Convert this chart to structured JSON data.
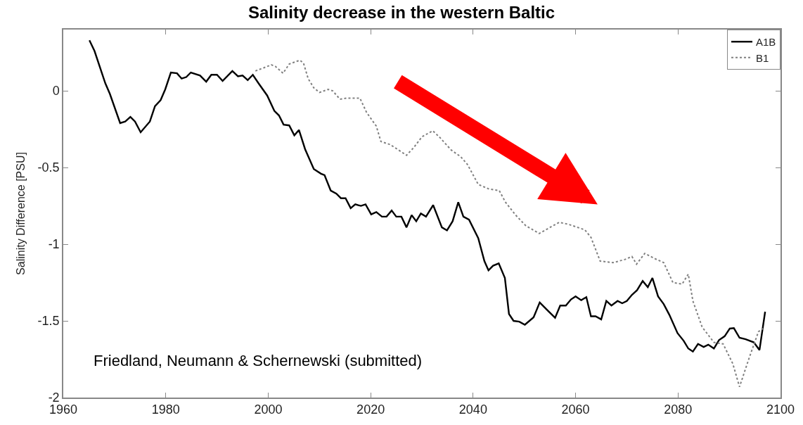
{
  "chart_data": {
    "type": "line",
    "title": "Salinity decrease in the western Baltic",
    "ylabel": "Salinity Difference [PSU]",
    "annotations": [
      "Friedland, Neumann & Schernewski (submitted)"
    ],
    "xlim": [
      1960,
      2100
    ],
    "xticks": [
      1960,
      1980,
      2000,
      2020,
      2040,
      2060,
      2080,
      2100
    ],
    "ylim": [
      -2,
      0.4
    ],
    "yticks": [
      0,
      -0.5,
      -1,
      -1.5,
      -2
    ],
    "grid": false,
    "legend": "top right",
    "marker": "none",
    "series": [
      {
        "name": "A1B",
        "color": "#000000",
        "line_style": "solid",
        "x": [
          1965.1,
          1966.1,
          1968.2,
          1969.1,
          1971.1,
          1972.1,
          1973.1,
          1974.0,
          1975.1,
          1976.9,
          1977.9,
          1979.0,
          1979.9,
          1981.0,
          1982.2,
          1983.1,
          1984.0,
          1984.9,
          1986.7,
          1987.9,
          1988.9,
          1990.0,
          1991.1,
          1993.0,
          1994.1,
          1995.0,
          1996.0,
          1997.0,
          1998.1,
          1999.8,
          2001.2,
          2002.1,
          2003.0,
          2004.1,
          2005.1,
          2006.0,
          2007.2,
          2008.9,
          2010.3,
          2011.0,
          2012.2,
          2013.3,
          2014.2,
          2015.1,
          2016.1,
          2017.0,
          2018.1,
          2019.0,
          2020.1,
          2021.1,
          2022.2,
          2023.1,
          2024.1,
          2025.0,
          2026.0,
          2027.0,
          2028.0,
          2028.9,
          2029.8,
          2030.8,
          2032.2,
          2033.9,
          2034.9,
          2036.0,
          2037.1,
          2038.1,
          2039.2,
          2041.0,
          2042.2,
          2043.0,
          2043.9,
          2045.0,
          2046.2,
          2047.0,
          2047.9,
          2049.0,
          2050.1,
          2051.8,
          2053.0,
          2054.5,
          2056.0,
          2057.0,
          2058.1,
          2059.1,
          2060.0,
          2061.1,
          2062.1,
          2063.0,
          2063.9,
          2065.0,
          2066.0,
          2067.0,
          2068.2,
          2069.1,
          2070.0,
          2071.0,
          2072.0,
          2073.1,
          2074.1,
          2075.0,
          2076.1,
          2077.2,
          2078.3,
          2079.9,
          2081.1,
          2082.0,
          2082.9,
          2083.9,
          2085.0,
          2085.9,
          2087.0,
          2088.0,
          2089.1,
          2090.1,
          2090.9,
          2092.0,
          2093.2,
          2094.8,
          2095.9,
          2097.0
        ],
        "values": [
          0.33,
          0.26,
          0.05,
          -0.02,
          -0.21,
          -0.2,
          -0.17,
          -0.2,
          -0.27,
          -0.2,
          -0.1,
          -0.06,
          0.01,
          0.12,
          0.115,
          0.08,
          0.09,
          0.12,
          0.1,
          0.06,
          0.105,
          0.105,
          0.065,
          0.13,
          0.095,
          0.1,
          0.07,
          0.105,
          0.05,
          -0.03,
          -0.13,
          -0.16,
          -0.22,
          -0.225,
          -0.29,
          -0.255,
          -0.38,
          -0.51,
          -0.54,
          -0.55,
          -0.65,
          -0.67,
          -0.7,
          -0.7,
          -0.765,
          -0.74,
          -0.75,
          -0.74,
          -0.805,
          -0.79,
          -0.82,
          -0.82,
          -0.78,
          -0.82,
          -0.82,
          -0.89,
          -0.81,
          -0.85,
          -0.8,
          -0.82,
          -0.745,
          -0.89,
          -0.91,
          -0.85,
          -0.726,
          -0.82,
          -0.84,
          -0.96,
          -1.11,
          -1.17,
          -1.14,
          -1.125,
          -1.22,
          -1.455,
          -1.5,
          -1.505,
          -1.525,
          -1.477,
          -1.38,
          -1.43,
          -1.48,
          -1.4,
          -1.4,
          -1.36,
          -1.34,
          -1.365,
          -1.345,
          -1.47,
          -1.47,
          -1.49,
          -1.37,
          -1.4,
          -1.37,
          -1.385,
          -1.37,
          -1.33,
          -1.3,
          -1.24,
          -1.28,
          -1.22,
          -1.34,
          -1.39,
          -1.46,
          -1.58,
          -1.63,
          -1.68,
          -1.7,
          -1.65,
          -1.67,
          -1.655,
          -1.68,
          -1.625,
          -1.6,
          -1.55,
          -1.547,
          -1.61,
          -1.62,
          -1.64,
          -1.69,
          -1.44
        ]
      },
      {
        "name": "B1",
        "color": "#808080",
        "line_style": "dotted",
        "x": [
          1997.5,
          1999.1,
          2000.6,
          2001.4,
          2002.9,
          2004.1,
          2006.2,
          2006.9,
          2007.8,
          2008.9,
          2010.0,
          2011.7,
          2012.6,
          2014.0,
          2015.4,
          2017.9,
          2019.2,
          2021.1,
          2022.0,
          2023.8,
          2025.2,
          2027.0,
          2028.4,
          2030.0,
          2032.1,
          2033.4,
          2035.7,
          2037.6,
          2038.9,
          2041.0,
          2043.1,
          2045.1,
          2046.3,
          2048.3,
          2050.3,
          2052.9,
          2054.5,
          2056.8,
          2058.6,
          2061.8,
          2063.0,
          2064.8,
          2067.3,
          2069.6,
          2071.0,
          2071.9,
          2073.5,
          2075.6,
          2077.2,
          2079.0,
          2080.8,
          2082.0,
          2082.9,
          2084.7,
          2087.0,
          2088.8,
          2090.7,
          2092.0,
          2093.9,
          2095.7,
          2096.6
        ],
        "values": [
          0.13,
          0.15,
          0.17,
          0.16,
          0.115,
          0.175,
          0.2,
          0.18,
          0.08,
          0.02,
          -0.01,
          0.01,
          0.0,
          -0.054,
          -0.047,
          -0.047,
          -0.14,
          -0.23,
          -0.33,
          -0.35,
          -0.38,
          -0.42,
          -0.37,
          -0.3,
          -0.26,
          -0.3,
          -0.385,
          -0.43,
          -0.48,
          -0.61,
          -0.64,
          -0.65,
          -0.725,
          -0.81,
          -0.88,
          -0.93,
          -0.9,
          -0.857,
          -0.87,
          -0.906,
          -0.955,
          -1.11,
          -1.12,
          -1.1,
          -1.08,
          -1.13,
          -1.06,
          -1.096,
          -1.12,
          -1.25,
          -1.26,
          -1.195,
          -1.37,
          -1.54,
          -1.64,
          -1.65,
          -1.78,
          -1.93,
          -1.74,
          -1.57,
          -1.55
        ]
      }
    ]
  }
}
